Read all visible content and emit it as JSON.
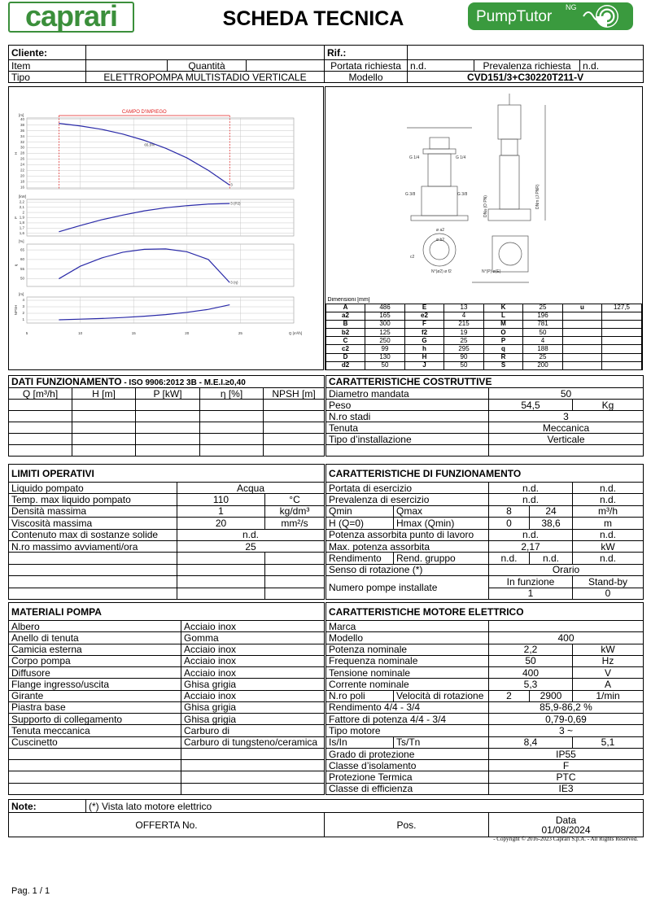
{
  "header": {
    "logo": "caprari",
    "title": "SCHEDA TECNICA",
    "brand": "PumpTutor",
    "brand_sup": "NG"
  },
  "request": {
    "cliente_label": "Cliente:",
    "rif_label": "Rif.:",
    "item": "Item",
    "quantita": "Quantità",
    "portata_label": "Portata richiesta",
    "portata": "n.d.",
    "prevalenza_label": "Prevalenza richiesta",
    "prevalenza": "n.d.",
    "tipo_label": "Tipo",
    "tipo": "ELETTROPOMPA MULTISTADIO VERTICALE",
    "modello_label": "Modello",
    "modello": "CVD151/3+C30220T211-V"
  },
  "chart_data": [
    {
      "type": "line",
      "title": "CAMPO D'IMPIEGO",
      "y_unit": "[m]",
      "y_label": "H",
      "annotation": "65,5%",
      "end_label": "3",
      "color": "#2a2aa8",
      "grid": true,
      "x": [
        8,
        10,
        12,
        14,
        16,
        18,
        20,
        22,
        24
      ],
      "values": [
        38.6,
        37.7,
        36.5,
        34.8,
        32.6,
        29.8,
        26.4,
        22,
        16.8
      ],
      "xlim": [
        5,
        30
      ],
      "xticks": [
        5,
        10,
        15,
        20,
        25
      ],
      "ylim": [
        15.5,
        40.5
      ],
      "yticks": [
        16,
        18,
        20,
        22,
        24,
        26,
        28,
        30,
        32,
        34,
        36,
        38,
        40
      ]
    },
    {
      "type": "line",
      "y_unit": "[kW]",
      "y_label": "P",
      "end_label": "3 (P2)",
      "color": "#2a2aa8",
      "grid": true,
      "x": [
        8,
        10,
        12,
        14,
        16,
        18,
        20,
        22,
        24
      ],
      "values": [
        1.63,
        1.75,
        1.86,
        1.95,
        2.03,
        2.09,
        2.13,
        2.16,
        2.17
      ],
      "xlim": [
        5,
        30
      ],
      "xticks": [
        5,
        10,
        15,
        20,
        25
      ],
      "ylim": [
        1.55,
        2.25
      ],
      "yticks": [
        {
          "value": 1.6,
          "label": "1,6"
        },
        {
          "value": 1.7,
          "label": "1,7"
        },
        {
          "value": 1.8,
          "label": "1,8"
        },
        {
          "value": 1.9,
          "label": "1,9"
        },
        2,
        {
          "value": 2.1,
          "label": "2,1"
        },
        {
          "value": 2.2,
          "label": "2,2"
        }
      ]
    },
    {
      "type": "line",
      "y_unit": "[%]",
      "y_label": "η",
      "end_label": "3 (η)",
      "color": "#2a2aa8",
      "grid": true,
      "x": [
        8,
        10,
        12,
        14,
        16,
        18,
        20,
        22,
        24
      ],
      "values": [
        50,
        56.5,
        60.8,
        63.8,
        65.3,
        65.5,
        64,
        60,
        48
      ],
      "xlim": [
        5,
        30
      ],
      "xticks": [
        5,
        10,
        15,
        20,
        25
      ],
      "ylim": [
        46,
        68
      ],
      "yticks": [
        50,
        55,
        60,
        65
      ]
    },
    {
      "type": "line",
      "y_unit": "[m]",
      "y_label": "NPSH",
      "x_label": "Q [m³/h]",
      "color": "#2a2aa8",
      "grid": true,
      "x": [
        8,
        10,
        12,
        14,
        16,
        18,
        20,
        22,
        24
      ],
      "values": [
        1.0,
        1.1,
        1.2,
        1.35,
        1.55,
        1.8,
        2.15,
        2.6,
        3.3
      ],
      "xlim": [
        5,
        30
      ],
      "xticks": [
        5,
        10,
        15,
        20,
        25
      ],
      "ylim": [
        0.5,
        4.5
      ],
      "yticks": [
        1,
        2,
        3,
        4
      ]
    }
  ],
  "drawing": {
    "labels": [
      "G 1/4",
      "G 1/4",
      "G 3/8",
      "G 3/8",
      "ø a2",
      "ø b2",
      "c2",
      "N°(ø2) ø f2",
      "N°(P) ø(E)",
      "DNa (O PN)",
      "DNm (J PNR)"
    ]
  },
  "dimensions": {
    "title": "Dimensioni [mm]",
    "rows": [
      [
        "A",
        "486",
        "E",
        "13",
        "K",
        "25",
        "u",
        "127,5"
      ],
      [
        "a2",
        "165",
        "e2",
        "4",
        "L",
        "196"
      ],
      [
        "B",
        "300",
        "F",
        "215",
        "M",
        "781"
      ],
      [
        "b2",
        "125",
        "f2",
        "19",
        "O",
        "50"
      ],
      [
        "C",
        "250",
        "G",
        "25",
        "P",
        "4"
      ],
      [
        "c2",
        "99",
        "h",
        "295",
        "q",
        "188"
      ],
      [
        "D",
        "130",
        "H",
        "90",
        "R",
        "25"
      ],
      [
        "d2",
        "50",
        "J",
        "50",
        "S",
        "200"
      ]
    ]
  },
  "dati": {
    "title": "DATI FUNZIONAMENTO",
    "subtitle": " - ISO 9906:2012 3B - M.E.I.≥0,40",
    "headers": [
      "Q [m³/h]",
      "H [m]",
      "P [kW]",
      "η [%]",
      "NPSH [m]"
    ]
  },
  "costr": {
    "title": "CARATTERISTICHE COSTRUTTIVE",
    "rows": [
      [
        "Diametro mandata",
        "50"
      ],
      [
        "Peso",
        "54,5",
        "Kg"
      ],
      [
        "N.ro stadi",
        "3"
      ],
      [
        "Tenuta",
        "Meccanica"
      ],
      [
        "Tipo d’installazione",
        "Verticale"
      ]
    ]
  },
  "limiti": {
    "title": "LIMITI OPERATIVI",
    "rows": [
      [
        "Liquido pompato",
        "Acqua"
      ],
      [
        "Temp. max liquido pompato",
        "110",
        "°C"
      ],
      [
        "Densità massima",
        "1",
        "kg/dm³"
      ],
      [
        "Viscosità massima",
        "20",
        "mm²/s"
      ],
      [
        "Contenuto max di sostanze solide",
        "n.d."
      ],
      [
        "N.ro massimo avviamenti/ora",
        "25"
      ]
    ]
  },
  "funz": {
    "title": "CARATTERISTICHE DI FUNZIONAMENTO",
    "rows": [
      [
        "Portata di esercizio",
        "n.d.",
        "n.d."
      ],
      [
        "Prevalenza di esercizio",
        "n.d.",
        "n.d."
      ],
      [
        "Qmin",
        "Qmax",
        "8",
        "24",
        "m³/h"
      ],
      [
        "H (Q=0)",
        "Hmax (Qmin)",
        "0",
        "38,6",
        "m"
      ],
      [
        "Potenza assorbita punto di lavoro",
        "n.d.",
        "n.d."
      ],
      [
        "Max. potenza assorbita",
        "2,17",
        "kW"
      ],
      [
        "Rendimento",
        "Rend. gruppo",
        "n.d.",
        "n.d.",
        "n.d."
      ],
      [
        "Senso di rotazione (*)",
        "Orario"
      ]
    ],
    "pumps": [
      "Numero pompe installate",
      "In funzione",
      "Stand-by",
      "1",
      "0"
    ]
  },
  "materiali": {
    "title": "MATERIALI POMPA",
    "rows": [
      [
        "Albero",
        "Acciaio inox"
      ],
      [
        "Anello di tenuta",
        "Gomma"
      ],
      [
        "Camicia esterna",
        "Acciaio inox"
      ],
      [
        "Corpo pompa",
        "Acciaio inox"
      ],
      [
        "Diffusore",
        "Acciaio inox"
      ],
      [
        "Flange ingresso/uscita",
        "Ghisa grigia"
      ],
      [
        "Girante",
        "Acciaio inox"
      ],
      [
        "Piastra base",
        "Ghisa grigia"
      ],
      [
        "Supporto di collegamento",
        "Ghisa grigia"
      ],
      [
        "Tenuta meccanica",
        "Carburo di"
      ],
      [
        "Cuscinetto",
        "Carburo di tungsteno/ceramica"
      ]
    ]
  },
  "motore": {
    "title": "CARATTERISTICHE MOTORE ELETTRICO",
    "rows": [
      [
        "Marca"
      ],
      [
        "Modello",
        "400"
      ],
      [
        "Potenza nominale",
        "2,2",
        "kW"
      ],
      [
        "Frequenza nominale",
        "50",
        "Hz"
      ],
      [
        "Tensione nominale",
        "400",
        "V"
      ],
      [
        "Corrente nominale",
        "5,3",
        "A"
      ],
      [
        "N.ro poli",
        "Velocità di rotazione",
        "2",
        "2900",
        "1/min"
      ],
      [
        "Rendimento 4/4 - 3/4",
        "85,9-86,2 %"
      ],
      [
        "Fattore di potenza 4/4 - 3/4",
        "0,79-0,69"
      ],
      [
        "Tipo motore",
        "3 ~"
      ],
      [
        "Is/In",
        "Ts/Tn",
        "8,4",
        "5,1"
      ],
      [
        "Grado di protezione",
        "IP55"
      ],
      [
        "Classe d’isolamento",
        "F"
      ],
      [
        "Protezione Termica",
        "PTC"
      ],
      [
        "Classe di efficienza",
        "IE3"
      ]
    ]
  },
  "note": {
    "label": "Note:",
    "text": "(*) Vista lato motore elettrico",
    "offerta": "OFFERTA No.",
    "pos": "Pos.",
    "data_label": "Data",
    "data": "01/08/2024"
  },
  "copyright": "-   Copyright © 2016-2023 Caprari S.p.A. - All Rights Reserved.",
  "page": "Pag. 1 / 1"
}
